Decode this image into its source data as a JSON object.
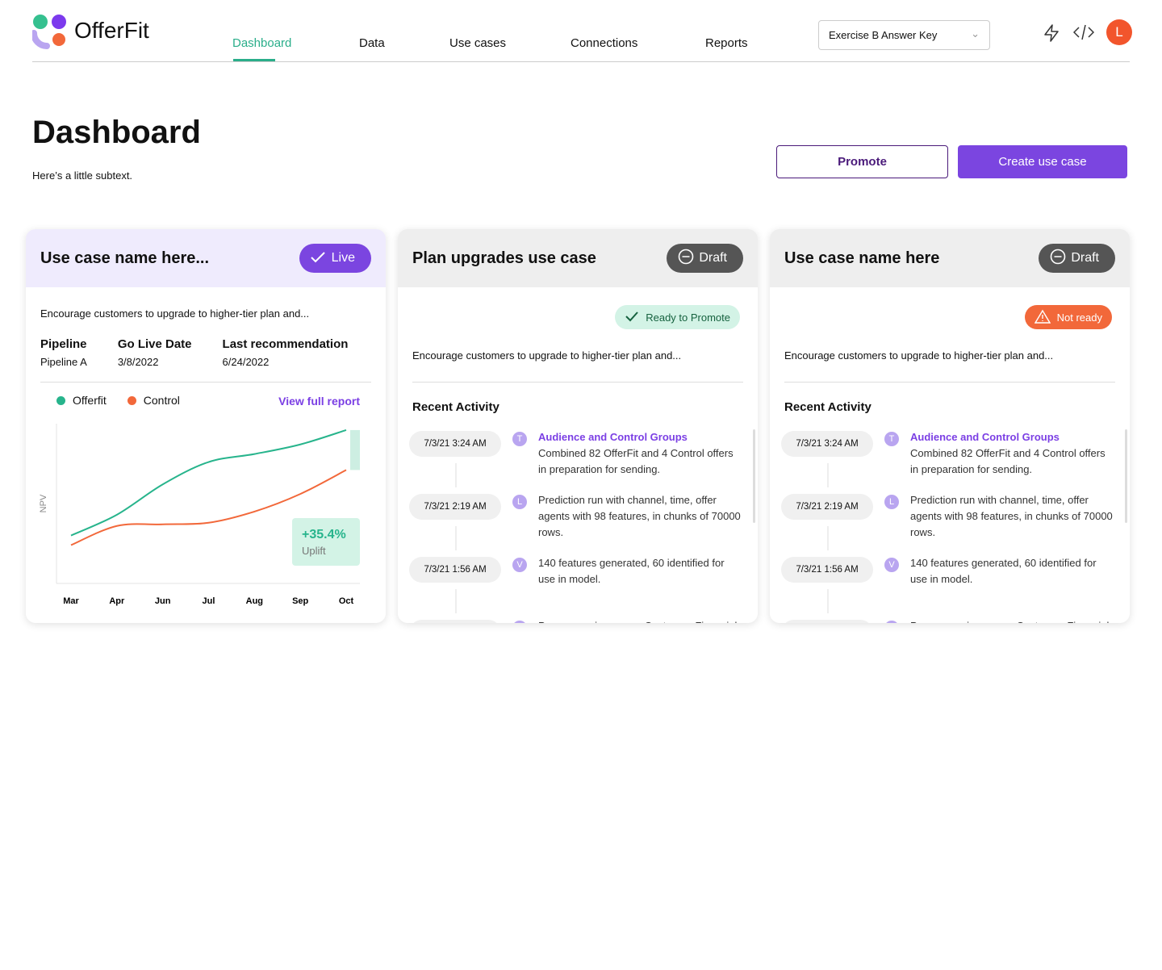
{
  "header": {
    "brand": "OfferFit",
    "nav": [
      "Dashboard",
      "Data",
      "Use cases",
      "Connections",
      "Reports"
    ],
    "selector": "Exercise B Answer Key",
    "avatar": "L"
  },
  "page": {
    "title": "Dashboard",
    "subtext": "Here’s a little subtext.",
    "buttons": [
      "Promote",
      "Create use case"
    ]
  },
  "cards": [
    {
      "title": "Use case name here...",
      "status": "Live",
      "description": "Encourage customers to upgrade to higher-tier plan and...",
      "fields": [
        {
          "label": "Pipeline",
          "value": "Pipeline A"
        },
        {
          "label": "Go Live Date",
          "value": "3/8/2022"
        },
        {
          "label": "Last recommendation",
          "value": "6/24/2022"
        }
      ],
      "chart": {
        "type": "line",
        "y_label": "NPV",
        "link": "View full report",
        "categories": [
          "Mar",
          "Apr",
          "Jun",
          "Jul",
          "Aug",
          "Sep",
          "Oct"
        ],
        "series": [
          {
            "name": "Offerfit",
            "color": "#27b48c",
            "values": [
              30,
              43,
              62,
              76,
              81,
              87,
              96
            ]
          },
          {
            "name": "Control",
            "color": "#f2683a",
            "values": [
              24,
              36,
              37,
              38,
              45,
              56,
              71
            ]
          }
        ],
        "ylim": [
          0,
          100
        ],
        "uplift": {
          "value": "+35.4%",
          "label": "Uplift"
        }
      }
    },
    {
      "title": "Plan upgrades use case",
      "status": "Draft",
      "readiness": "Ready to Promote",
      "description": "Encourage customers to upgrade to higher-tier plan and...",
      "activity_title": "Recent Activity",
      "activity": [
        {
          "time": "7/3/21 3:24 AM",
          "initial": "T",
          "title": "Audience and Control Groups",
          "text": "Combined 82 OfferFit and 4 Control offers in preparation for sending."
        },
        {
          "time": "7/3/21 2:19 AM",
          "initial": "L",
          "text": "Prediction run with channel, time, offer agents with 98 features, in chunks of 70000 rows."
        },
        {
          "time": "7/3/21 1:56 AM",
          "initial": "V",
          "text": "140 features generated, 60 identified for use in model."
        },
        {
          "initial": "T",
          "text": "Pre-processing run on Customer, Financials"
        }
      ]
    },
    {
      "title": "Use case name here",
      "status": "Draft",
      "readiness": "Not ready",
      "description": "Encourage customers to upgrade to higher-tier plan and...",
      "activity_title": "Recent Activity",
      "activity": [
        {
          "time": "7/3/21 3:24 AM",
          "initial": "T",
          "title": "Audience and Control Groups",
          "text": "Combined 82 OfferFit and 4 Control offers in preparation for sending."
        },
        {
          "time": "7/3/21 2:19 AM",
          "initial": "L",
          "text": "Prediction run with channel, time, offer agents with 98 features, in chunks of 70000 rows."
        },
        {
          "time": "7/3/21 1:56 AM",
          "initial": "V",
          "text": "140 features generated, 60 identified for use in model."
        },
        {
          "initial": "V",
          "text": "Pre-processing run on Customer, Financials"
        }
      ]
    }
  ]
}
